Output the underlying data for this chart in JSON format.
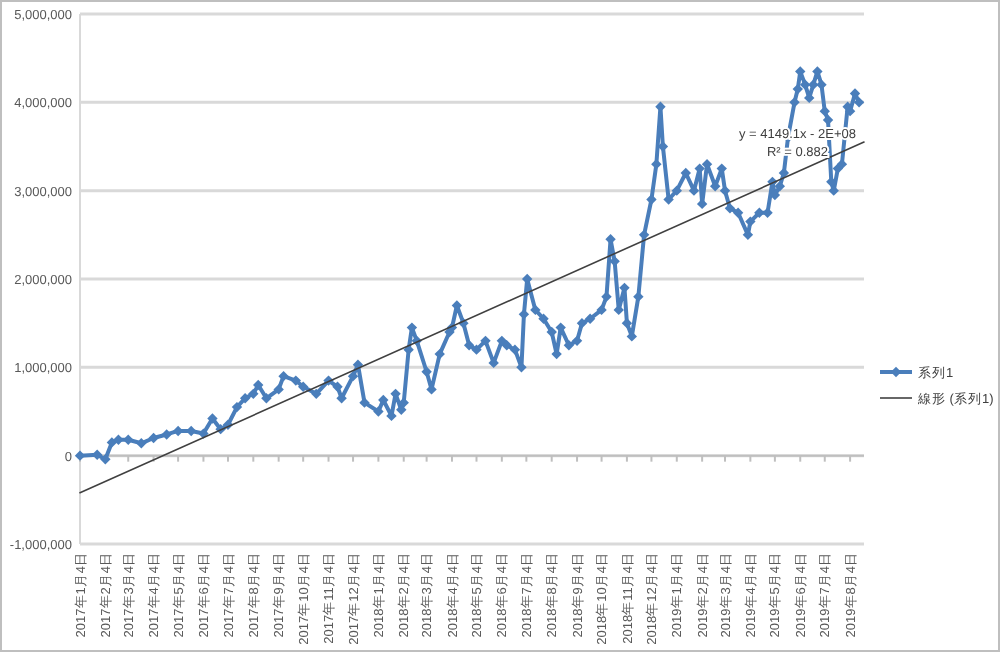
{
  "chart_data": {
    "type": "line",
    "marker": "diamond",
    "grid": "y",
    "legend": "right",
    "xlim": [
      "2017-01-04",
      "2019-08-21"
    ],
    "xticks": [
      {
        "value": "2017-01-04",
        "label": "2017年1月4日"
      },
      {
        "value": "2017-02-04",
        "label": "2017年2月4日"
      },
      {
        "value": "2017-03-04",
        "label": "2017年3月4日"
      },
      {
        "value": "2017-04-04",
        "label": "2017年4月4日"
      },
      {
        "value": "2017-05-04",
        "label": "2017年5月4日"
      },
      {
        "value": "2017-06-04",
        "label": "2017年6月4日"
      },
      {
        "value": "2017-07-04",
        "label": "2017年7月4日"
      },
      {
        "value": "2017-08-04",
        "label": "2017年8月4日"
      },
      {
        "value": "2017-09-04",
        "label": "2017年9月4日"
      },
      {
        "value": "2017-10-04",
        "label": "2017年10月4日"
      },
      {
        "value": "2017-11-04",
        "label": "2017年11月4日"
      },
      {
        "value": "2017-12-04",
        "label": "2017年12月4日"
      },
      {
        "value": "2018-01-04",
        "label": "2018年1月4日"
      },
      {
        "value": "2018-02-04",
        "label": "2018年2月4日"
      },
      {
        "value": "2018-03-04",
        "label": "2018年3月4日"
      },
      {
        "value": "2018-04-04",
        "label": "2018年4月4日"
      },
      {
        "value": "2018-05-04",
        "label": "2018年5月4日"
      },
      {
        "value": "2018-06-04",
        "label": "2018年6月4日"
      },
      {
        "value": "2018-07-04",
        "label": "2018年7月4日"
      },
      {
        "value": "2018-08-04",
        "label": "2018年8月4日"
      },
      {
        "value": "2018-09-04",
        "label": "2018年9月4日"
      },
      {
        "value": "2018-10-04",
        "label": "2018年10月4日"
      },
      {
        "value": "2018-11-04",
        "label": "2018年11月4日"
      },
      {
        "value": "2018-12-04",
        "label": "2018年12月4日"
      },
      {
        "value": "2019-01-04",
        "label": "2019年1月4日"
      },
      {
        "value": "2019-02-04",
        "label": "2019年2月4日"
      },
      {
        "value": "2019-03-04",
        "label": "2019年3月4日"
      },
      {
        "value": "2019-04-04",
        "label": "2019年4月4日"
      },
      {
        "value": "2019-05-04",
        "label": "2019年5月4日"
      },
      {
        "value": "2019-06-04",
        "label": "2019年6月4日"
      },
      {
        "value": "2019-07-04",
        "label": "2019年7月4日"
      },
      {
        "value": "2019-08-04",
        "label": "2019年8月4日"
      }
    ],
    "ylim": [
      -1000000,
      5000000
    ],
    "yticks": [
      {
        "value": -1000000,
        "label": "-1,000,000"
      },
      0,
      {
        "value": 1000000,
        "label": "1,000,000"
      },
      {
        "value": 2000000,
        "label": "2,000,000"
      },
      {
        "value": 3000000,
        "label": "3,000,000"
      },
      {
        "value": 4000000,
        "label": "4,000,000"
      },
      {
        "value": 5000000,
        "label": "5,000,000"
      }
    ],
    "annotations": [
      "y = 4149.1x - 2E+08",
      "R² = 0.882"
    ],
    "series": [
      {
        "name": "系列1",
        "color": "#4a7ebb",
        "x": [
          "2017-01-04",
          "2017-01-25",
          "2017-02-04",
          "2017-02-12",
          "2017-02-20",
          "2017-03-04",
          "2017-03-20",
          "2017-04-04",
          "2017-04-20",
          "2017-05-04",
          "2017-05-20",
          "2017-06-04",
          "2017-06-15",
          "2017-06-25",
          "2017-07-04",
          "2017-07-15",
          "2017-07-25",
          "2017-08-04",
          "2017-08-10",
          "2017-08-20",
          "2017-09-04",
          "2017-09-10",
          "2017-09-25",
          "2017-10-04",
          "2017-10-20",
          "2017-11-04",
          "2017-11-15",
          "2017-11-20",
          "2017-12-04",
          "2017-12-10",
          "2017-12-18",
          "2018-01-04",
          "2018-01-10",
          "2018-01-20",
          "2018-01-25",
          "2018-02-01",
          "2018-02-04",
          "2018-02-10",
          "2018-02-14",
          "2018-02-20",
          "2018-03-04",
          "2018-03-10",
          "2018-03-20",
          "2018-04-01",
          "2018-04-04",
          "2018-04-10",
          "2018-04-18",
          "2018-04-25",
          "2018-05-04",
          "2018-05-15",
          "2018-05-25",
          "2018-06-04",
          "2018-06-10",
          "2018-06-20",
          "2018-06-28",
          "2018-07-01",
          "2018-07-05",
          "2018-07-15",
          "2018-07-25",
          "2018-08-04",
          "2018-08-10",
          "2018-08-15",
          "2018-08-25",
          "2018-09-04",
          "2018-09-10",
          "2018-09-20",
          "2018-10-04",
          "2018-10-10",
          "2018-10-15",
          "2018-10-20",
          "2018-10-25",
          "2018-11-01",
          "2018-11-04",
          "2018-11-10",
          "2018-11-18",
          "2018-11-25",
          "2018-12-04",
          "2018-12-10",
          "2018-12-15",
          "2018-12-18",
          "2018-12-25",
          "2019-01-04",
          "2019-01-15",
          "2019-01-25",
          "2019-02-01",
          "2019-02-04",
          "2019-02-10",
          "2019-02-20",
          "2019-02-28",
          "2019-03-04",
          "2019-03-10",
          "2019-03-20",
          "2019-04-01",
          "2019-04-04",
          "2019-04-15",
          "2019-04-25",
          "2019-05-01",
          "2019-05-04",
          "2019-05-10",
          "2019-05-15",
          "2019-05-20",
          "2019-05-28",
          "2019-06-01",
          "2019-06-04",
          "2019-06-10",
          "2019-06-15",
          "2019-06-20",
          "2019-06-25",
          "2019-06-30",
          "2019-07-04",
          "2019-07-08",
          "2019-07-12",
          "2019-07-15",
          "2019-07-20",
          "2019-07-25",
          "2019-08-01",
          "2019-08-04",
          "2019-08-10",
          "2019-08-15"
        ],
        "values": [
          0,
          10000,
          -40000,
          150000,
          180000,
          180000,
          140000,
          200000,
          240000,
          280000,
          280000,
          250000,
          420000,
          300000,
          350000,
          550000,
          650000,
          700000,
          800000,
          650000,
          750000,
          900000,
          850000,
          780000,
          700000,
          850000,
          780000,
          650000,
          900000,
          1030000,
          600000,
          500000,
          630000,
          450000,
          700000,
          520000,
          600000,
          1200000,
          1450000,
          1300000,
          950000,
          750000,
          1150000,
          1400000,
          1450000,
          1700000,
          1500000,
          1250000,
          1200000,
          1300000,
          1050000,
          1300000,
          1250000,
          1200000,
          1000000,
          1600000,
          2000000,
          1650000,
          1550000,
          1400000,
          1150000,
          1450000,
          1250000,
          1300000,
          1500000,
          1550000,
          1650000,
          1800000,
          2450000,
          2200000,
          1650000,
          1900000,
          1500000,
          1350000,
          1800000,
          2500000,
          2900000,
          3300000,
          3950000,
          3500000,
          2900000,
          3000000,
          3200000,
          3000000,
          3250000,
          2850000,
          3300000,
          3050000,
          3250000,
          3000000,
          2800000,
          2750000,
          2500000,
          2650000,
          2750000,
          2750000,
          3100000,
          2950000,
          3050000,
          3200000,
          3600000,
          4000000,
          4150000,
          4350000,
          4200000,
          4050000,
          4200000,
          4350000,
          4200000,
          3900000,
          3800000,
          3100000,
          3000000,
          3250000,
          3300000,
          3950000,
          3900000,
          4100000,
          4000000
        ]
      },
      {
        "name": "線形 (系列1)",
        "type": "line",
        "marker": "none",
        "color": "#404040",
        "x": [
          "2017-01-04",
          "2019-08-21"
        ],
        "values": [
          -420000,
          3550000
        ]
      }
    ]
  }
}
